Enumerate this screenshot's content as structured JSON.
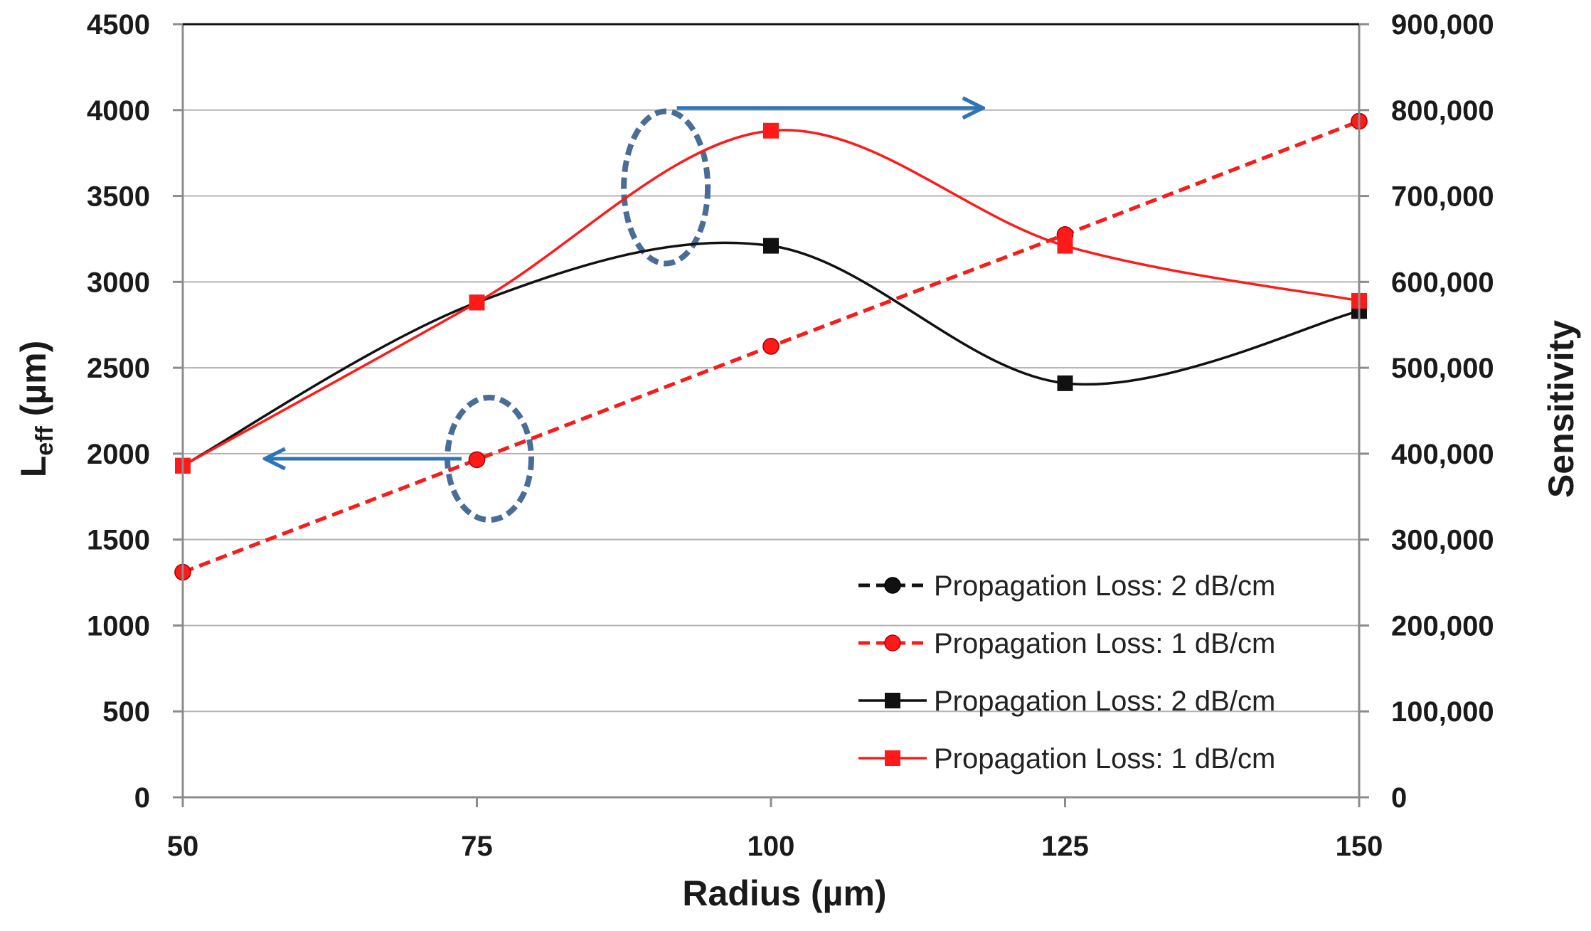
{
  "chart_data": {
    "type": "line",
    "title": "",
    "xlabel": "Radius (µm)",
    "ylabel_main": "L",
    "ylabel_sub": "eff",
    "ylabel_unit": " (µm)",
    "y2label": "Sensitivity",
    "x": [
      50,
      75,
      100,
      125,
      150
    ],
    "xlim": [
      50,
      150
    ],
    "ylim": [
      0,
      4500
    ],
    "y2lim": [
      0,
      900000
    ],
    "x_ticks": [
      50,
      75,
      100,
      125,
      150
    ],
    "y_ticks": [
      0,
      500,
      1000,
      1500,
      2000,
      2500,
      3000,
      3500,
      4000,
      4500
    ],
    "y2_tick_labels": [
      "0",
      "100,000",
      "200,000",
      "300,000",
      "400,000",
      "500,000",
      "600,000",
      "700,000",
      "800,000",
      "900,000"
    ],
    "grid": true,
    "legend_position": "lower-right",
    "series": [
      {
        "name": "Propagation Loss: 2 dB/cm",
        "axis": "right",
        "marker": "circle",
        "dash": true,
        "smooth": false,
        "color": "#111111",
        "values": [
          262000,
          393000,
          525000,
          655000,
          787000
        ]
      },
      {
        "name": "Propagation Loss: 1 dB/cm",
        "axis": "right",
        "marker": "circle",
        "dash": true,
        "smooth": false,
        "color": "#ff1a1a",
        "values": [
          262000,
          393000,
          525000,
          655000,
          787000
        ]
      },
      {
        "name": "Propagation Loss: 2 dB/cm",
        "axis": "left",
        "marker": "square",
        "dash": false,
        "smooth": true,
        "color": "#111111",
        "values": [
          1930,
          2880,
          3210,
          2410,
          2830
        ]
      },
      {
        "name": "Propagation Loss: 1 dB/cm",
        "axis": "left",
        "marker": "square",
        "dash": false,
        "smooth": true,
        "color": "#ff1a1a",
        "values": [
          1930,
          2880,
          3880,
          3210,
          2890
        ]
      }
    ],
    "annotations": [
      {
        "type": "ellipse-arrow",
        "target_axis": "left",
        "at_x": 76,
        "at_y": 1950,
        "arrow_to_x": 57
      },
      {
        "type": "ellipse-arrow",
        "target_axis": "right",
        "at_x": 91,
        "at_y": 710000,
        "arrow_from_x": 92,
        "arrow_to_x": 118,
        "arrow_y": 800000
      }
    ],
    "colors": {
      "arrow": "#2e75b6",
      "ellipse": "#4a6d96",
      "grid": "#b3b3b3"
    }
  }
}
